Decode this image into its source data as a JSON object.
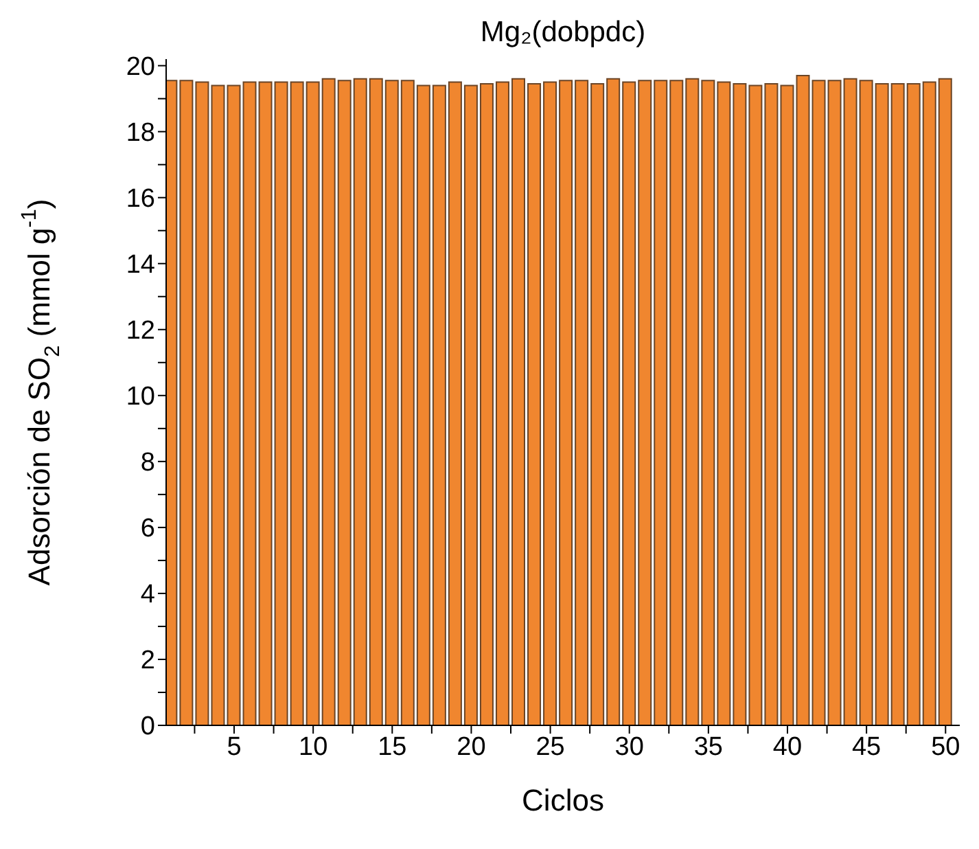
{
  "chart_data": {
    "type": "bar",
    "title": "Mg₂(dobpdc)",
    "xlabel": "Ciclos",
    "ylabel": "Adsorción de SO$_{2}$ (mmol g$^{-1}$)",
    "x": [
      1,
      2,
      3,
      4,
      5,
      6,
      7,
      8,
      9,
      10,
      11,
      12,
      13,
      14,
      15,
      16,
      17,
      18,
      19,
      20,
      21,
      22,
      23,
      24,
      25,
      26,
      27,
      28,
      29,
      30,
      31,
      32,
      33,
      34,
      35,
      36,
      37,
      38,
      39,
      40,
      41,
      42,
      43,
      44,
      45,
      46,
      47,
      48,
      49,
      50
    ],
    "values": [
      19.55,
      19.55,
      19.5,
      19.4,
      19.4,
      19.5,
      19.5,
      19.5,
      19.5,
      19.5,
      19.6,
      19.55,
      19.6,
      19.6,
      19.55,
      19.55,
      19.4,
      19.4,
      19.5,
      19.4,
      19.45,
      19.5,
      19.6,
      19.45,
      19.5,
      19.55,
      19.55,
      19.45,
      19.6,
      19.5,
      19.55,
      19.55,
      19.55,
      19.6,
      19.55,
      19.5,
      19.45,
      19.4,
      19.45,
      19.4,
      19.7,
      19.55,
      19.55,
      19.6,
      19.55,
      19.45,
      19.45,
      19.45,
      19.5,
      19.6
    ],
    "color": "#f0862f",
    "xlim": [
      0.7,
      50.9
    ],
    "xticks": [
      {
        "value": 2.5,
        "label": null
      },
      5,
      {
        "value": 7.5,
        "label": null
      },
      10,
      {
        "value": 12.5,
        "label": null
      },
      15,
      {
        "value": 17.5,
        "label": null
      },
      20,
      {
        "value": 22.5,
        "label": null
      },
      25,
      {
        "value": 27.5,
        "label": null
      },
      30,
      {
        "value": 32.5,
        "label": null
      },
      35,
      {
        "value": 37.5,
        "label": null
      },
      40,
      {
        "value": 42.5,
        "label": null
      },
      45,
      {
        "value": 47.5,
        "label": null
      },
      50
    ],
    "ylim": [
      0,
      20.2
    ],
    "yticks": [
      0,
      {
        "value": 1,
        "label": null
      },
      2,
      {
        "value": 3,
        "label": null
      },
      4,
      {
        "value": 5,
        "label": null
      },
      6,
      {
        "value": 7,
        "label": null
      },
      8,
      {
        "value": 9,
        "label": null
      },
      10,
      {
        "value": 11,
        "label": null
      },
      12,
      {
        "value": 13,
        "label": null
      },
      14,
      {
        "value": 15,
        "label": null
      },
      16,
      {
        "value": 17,
        "label": null
      },
      18,
      {
        "value": 19,
        "label": null
      },
      20
    ],
    "grid": false,
    "legend": false
  }
}
